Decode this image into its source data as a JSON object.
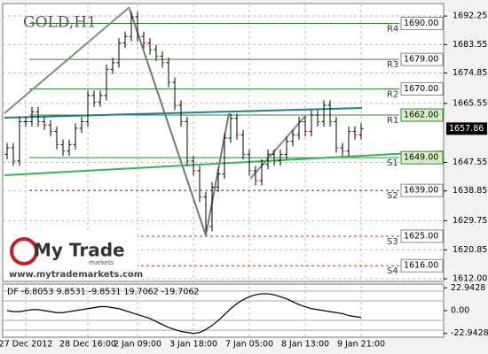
{
  "chart_data": {
    "type": "ohlc",
    "title": "GOLD,H1",
    "categories": [
      null,
      null,
      null,
      "27 Dec 2012",
      null,
      null,
      null,
      null,
      null,
      null,
      null,
      null,
      null,
      "28 Dec 16:00",
      null,
      null,
      null,
      null,
      null,
      null,
      null,
      "2 Jan 09:00",
      null,
      null,
      null,
      null,
      null,
      null,
      null,
      null,
      "3 Jan 18:00",
      null,
      null,
      null,
      null,
      null,
      null,
      null,
      null,
      "7 Jan 05:00",
      null,
      null,
      null,
      null,
      null,
      null,
      null,
      null,
      "8 Jan 13:00",
      null,
      null,
      null,
      null,
      null,
      null,
      null,
      null,
      "9 Jan 21:00"
    ],
    "open": [
      1650,
      1652,
      1648,
      1660,
      1660,
      1663,
      1660,
      1659,
      1657,
      1653,
      1651,
      1653,
      1658,
      1660,
      1668,
      1666,
      1668,
      1676,
      1678,
      1684,
      1686,
      1692,
      1686,
      1684,
      1682,
      1680,
      1678,
      1672,
      1665,
      1660,
      1648,
      1645,
      1637,
      1628,
      1640,
      1644,
      1655,
      1661,
      1656,
      1650,
      1645,
      1642,
      1647,
      1650,
      1648,
      1650,
      1654,
      1656,
      1660,
      1657,
      1662,
      1660,
      1665,
      1660,
      1652,
      1651,
      1657,
      1656
    ],
    "high": [
      1653.5,
      1653.5,
      1661.5,
      1661.5,
      1664.5,
      1664.5,
      1661.5,
      1660.5,
      1658.5,
      1654.5,
      1654.5,
      1659.5,
      1661.5,
      1669.5,
      1669.5,
      1669.5,
      1677.5,
      1679.5,
      1685.5,
      1687.5,
      1693.5,
      1693.5,
      1687.5,
      1685.5,
      1683.5,
      1681.5,
      1679.5,
      1673.5,
      1666.5,
      1661.5,
      1649.5,
      1646.5,
      1638.5,
      1641.5,
      1645.5,
      1656.5,
      1662.5,
      1662.5,
      1657.5,
      1651.5,
      1646.5,
      1648.5,
      1651.5,
      1651.5,
      1651.5,
      1655.5,
      1657.5,
      1661.5,
      1661.5,
      1663.5,
      1663.5,
      1666.5,
      1666.5,
      1661.5,
      1653.5,
      1658.5,
      1658.5,
      1659.5
    ],
    "low": [
      1648.5,
      1646.5,
      1646.5,
      1658.5,
      1658.5,
      1658.5,
      1657.5,
      1655.5,
      1651.5,
      1649.5,
      1649.5,
      1651.5,
      1656.5,
      1658.5,
      1664.5,
      1664.5,
      1666.5,
      1674.5,
      1676.5,
      1682.5,
      1684.5,
      1684.5,
      1682.5,
      1680.5,
      1678.5,
      1676.5,
      1670.5,
      1663.5,
      1658.5,
      1646.5,
      1643.5,
      1635.5,
      1626.5,
      1626.5,
      1638.5,
      1642.5,
      1653.5,
      1654.5,
      1648.5,
      1643.5,
      1640.5,
      1640.5,
      1645.5,
      1646.5,
      1646.5,
      1648.5,
      1652.5,
      1654.5,
      1655.5,
      1655.5,
      1658.5,
      1658.5,
      1658.5,
      1650.5,
      1649.5,
      1649.5,
      1654.5,
      1654.5
    ],
    "close": [
      1652,
      1648,
      1660,
      1660,
      1663,
      1660,
      1659,
      1657,
      1653,
      1651,
      1653,
      1658,
      1660,
      1668,
      1666,
      1668,
      1676,
      1678,
      1684,
      1686,
      1692,
      1686,
      1684,
      1682,
      1680,
      1678,
      1672,
      1665,
      1660,
      1648,
      1645,
      1637,
      1628,
      1640,
      1644,
      1655,
      1661,
      1656,
      1650,
      1645,
      1642,
      1647,
      1650,
      1648,
      1650,
      1654,
      1656,
      1660,
      1657,
      1662,
      1660,
      1665,
      1660,
      1652,
      1651,
      1657,
      1656,
      1657.86
    ],
    "color": "#000000",
    "ylim": [
      1611.2,
      1695.8
    ],
    "yticks": [
      {
        "value": 1692.25,
        "label": "1692.25"
      },
      {
        "value": 1683.55,
        "label": "1683.55"
      },
      {
        "value": 1674.85,
        "label": "1674.85"
      },
      {
        "value": 1665.55,
        "label": "1665.55"
      },
      {
        "value": 1647.55,
        "label": "1647.55"
      },
      {
        "value": 1638.85,
        "label": "1638.85"
      },
      {
        "value": 1629.75,
        "label": "1629.75"
      },
      {
        "value": 1620.85,
        "label": "1620.85"
      },
      {
        "value": 1612.0,
        "label": "1612.00"
      }
    ],
    "last_price": {
      "value": 1657.86,
      "label": "1657.86"
    },
    "grid": true,
    "levels": [
      {
        "name": "R4",
        "value": 1690,
        "label": "1690.00",
        "color": "#2e8b2e",
        "highlight": false
      },
      {
        "name": "R3",
        "value": 1679,
        "label": "1679.00",
        "color": "#2e8b2e",
        "highlight": false
      },
      {
        "name": "R2",
        "value": 1670,
        "label": "1670.00",
        "color": "#2e8b2e",
        "highlight": false
      },
      {
        "name": "R1",
        "value": 1662,
        "label": "1662.00",
        "color": "#2e8b2e",
        "highlight": true
      },
      {
        "name": "S1",
        "value": 1649,
        "label": "1649.00",
        "color": "#2e8b2e",
        "highlight": true
      },
      {
        "name": "S2",
        "value": 1639,
        "label": "1639.00",
        "color": "#cc2222",
        "highlight": false
      },
      {
        "name": "S3",
        "value": 1625,
        "label": "1625.00",
        "color": "#cc2222",
        "highlight": false
      },
      {
        "name": "S4",
        "value": 1616,
        "label": "1616.00",
        "color": "#cc2222",
        "highlight": false
      }
    ],
    "indicator": {
      "header": "DF -6.8053 9.8531 -9.8531 19.7062 -19.7062",
      "values": [
        0,
        -1,
        -1,
        0,
        1,
        1,
        0,
        -1,
        -2,
        -2,
        -1,
        0,
        1,
        2,
        3,
        4,
        4,
        3,
        2,
        0,
        -2,
        -4,
        -6,
        -8,
        -11,
        -14,
        -17,
        -19,
        -21,
        -22,
        -23,
        -22,
        -19,
        -15,
        -10,
        -4,
        2,
        7,
        11,
        14,
        16,
        17,
        17,
        16,
        14,
        12,
        9,
        6,
        4,
        2,
        1,
        0,
        -1,
        -2,
        -3,
        -5,
        -6,
        -6.8053
      ],
      "color": "#000000",
      "bands": [
        9.8531,
        -9.8531,
        19.7062,
        -19.7062
      ],
      "band_color": "#aaaaaa",
      "ylim": [
        -25,
        25
      ],
      "yticks": [
        {
          "value": 22.9428,
          "label": "22.9428"
        },
        {
          "value": 0,
          "label": "0.00"
        },
        {
          "value": -22.9428,
          "label": "-22.9428"
        }
      ]
    },
    "logo": {
      "name": "My Trade",
      "sub": "markets",
      "url": "www.mytrademarkets.com"
    }
  }
}
